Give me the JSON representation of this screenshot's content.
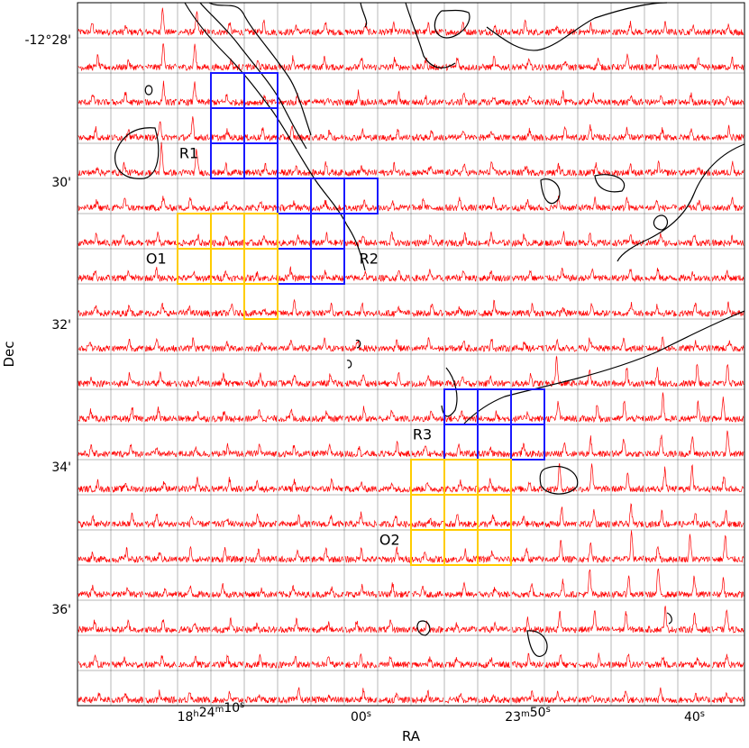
{
  "chart_data": {
    "type": "spectral-map",
    "xlabel": "RA",
    "ylabel": "Dec",
    "grid": {
      "columns": 20,
      "rows": 20
    },
    "x_ticks": [
      {
        "main": "18",
        "sup1": "h",
        "mid": "24",
        "sup2": "m",
        "end": "10",
        "sup3": "s",
        "col": 4
      },
      {
        "main": "00",
        "sup3": "s",
        "col": 8.5
      },
      {
        "main": "23",
        "sup2": "m",
        "end": "50",
        "sup3": "s",
        "col": 13.5
      },
      {
        "main": "40",
        "sup3": "s",
        "col": 18.5
      }
    ],
    "y_ticks": [
      {
        "label": "-12°28'",
        "row": 1.05
      },
      {
        "label": "30'",
        "row": 5.1
      },
      {
        "label": "32'",
        "row": 9.15
      },
      {
        "label": "34'",
        "row": 13.2
      },
      {
        "label": "36'",
        "row": 17.25
      }
    ],
    "regions": [
      {
        "name": "R1",
        "color": "#1a1aff",
        "col0": 4,
        "row0": 2,
        "cols": 2,
        "rows": 3,
        "label_col": 3.05,
        "label_row": 4.4,
        "cells": "full"
      },
      {
        "name": "R2",
        "color": "#1a1aff",
        "col0": 6,
        "row0": 5,
        "cols": 2,
        "rows": 3,
        "extra": [
          [
            7,
            5
          ],
          [
            8,
            5
          ]
        ],
        "label_col": 8.45,
        "label_row": 7.4
      },
      {
        "name": "O1",
        "color": "#ffcc00",
        "col0": 3,
        "row0": 6,
        "cols": 3,
        "rows": 2,
        "extra": [
          [
            5,
            8
          ]
        ],
        "label_col": 2.05,
        "label_row": 7.4
      },
      {
        "name": "R3",
        "color": "#1a1aff",
        "col0": 11,
        "row0": 11,
        "cols": 3,
        "rows": 2,
        "label_col": 10.05,
        "label_row": 12.4
      },
      {
        "name": "O2",
        "color": "#ffcc00",
        "col0": 10,
        "row0": 13,
        "cols": 3,
        "rows": 3,
        "label_col": 9.05,
        "label_row": 15.4
      }
    ],
    "colors": {
      "spectrum": "#ff0000",
      "contour": "#000000",
      "grid": "#000000"
    }
  }
}
